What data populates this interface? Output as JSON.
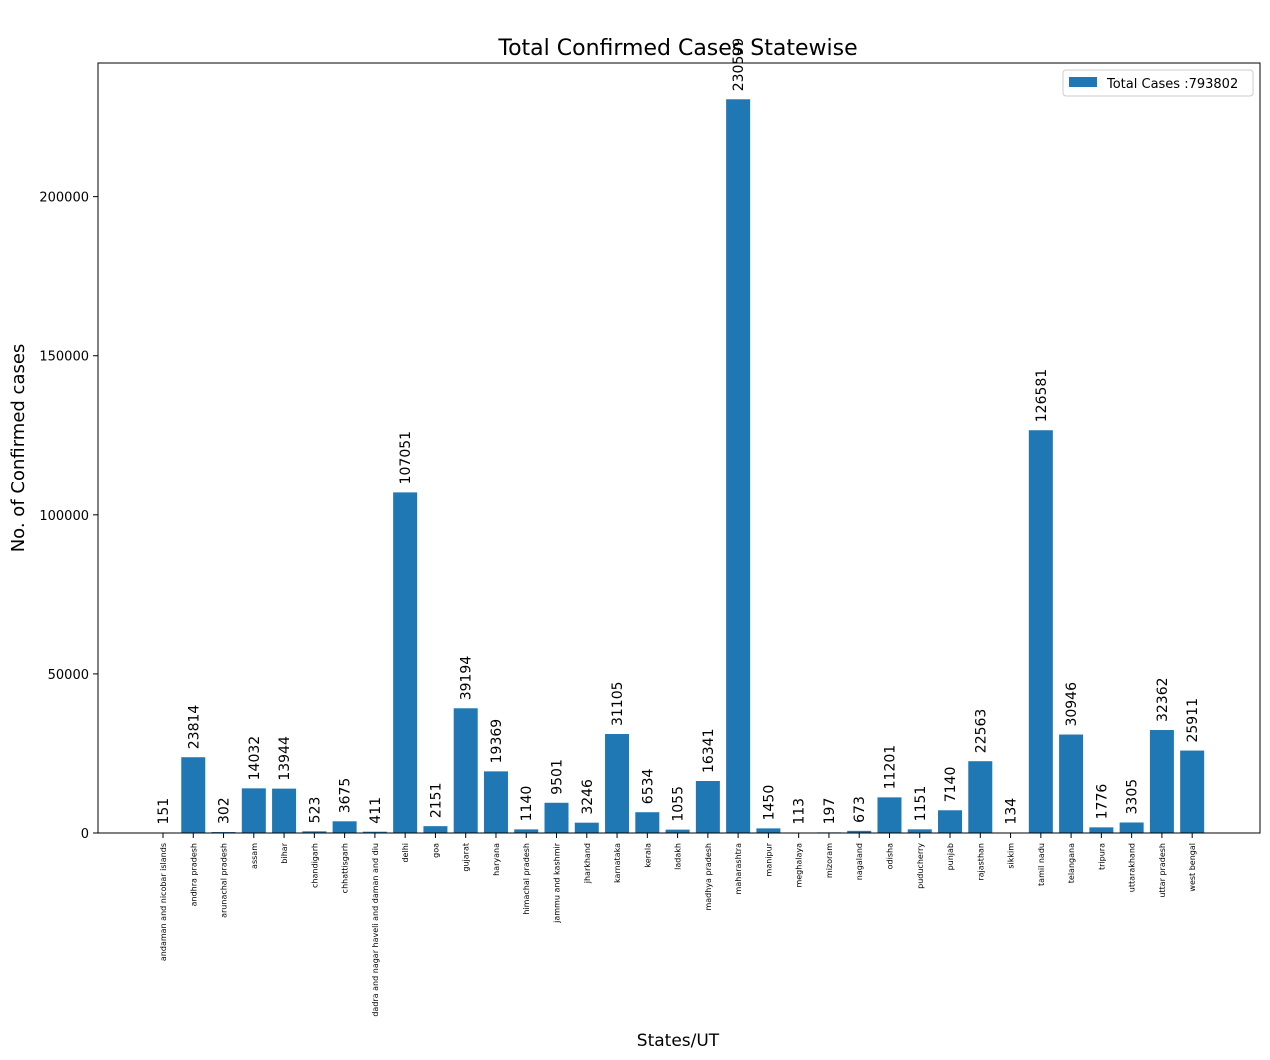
{
  "chart_data": {
    "type": "bar",
    "title": "Total Confirmed Cases Statewise",
    "xlabel": "States/UT",
    "ylabel": "No. of Confirmed cases",
    "ylim": [
      0,
      242000
    ],
    "yticks": [
      0,
      50000,
      100000,
      150000,
      200000
    ],
    "grid": false,
    "legend": {
      "placement": "top-right",
      "entries": [
        "Total Cases :793802"
      ]
    },
    "bar_color": "#1f77b4",
    "categories": [
      "andaman and nicobar islands",
      "andhra pradesh",
      "arunachal pradesh",
      "assam",
      "bihar",
      "chandigarh",
      "chhattisgarh",
      "dadra and nagar haveli and daman and diu",
      "delhi",
      "goa",
      "gujarat",
      "haryana",
      "himachal pradesh",
      "jammu and kashmir",
      "jharkhand",
      "karnataka",
      "kerala",
      "ladakh",
      "madhya pradesh",
      "maharashtra",
      "manipur",
      "meghalaya",
      "mizoram",
      "nagaland",
      "odisha",
      "puducherry",
      "punjab",
      "rajasthan",
      "sikkim",
      "tamil nadu",
      "telangana",
      "tripura",
      "uttarakhand",
      "uttar pradesh",
      "west bengal"
    ],
    "series": [
      {
        "name": "Total Cases :793802",
        "values": [
          151,
          23814,
          302,
          14032,
          13944,
          523,
          3675,
          411,
          107051,
          2151,
          39194,
          19369,
          1140,
          9501,
          3246,
          31105,
          6534,
          1055,
          16341,
          230599,
          1450,
          113,
          197,
          673,
          11201,
          1151,
          7140,
          22563,
          134,
          126581,
          30946,
          1776,
          3305,
          32362,
          25911
        ]
      }
    ]
  }
}
